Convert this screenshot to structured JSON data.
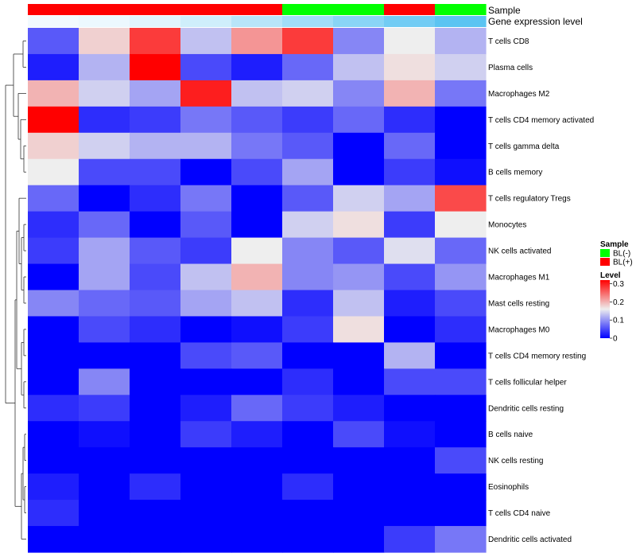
{
  "chart_data": {
    "type": "heatmap",
    "title": "",
    "annotation_labels": {
      "sample": "Sample",
      "gene_level": "Gene expression level"
    },
    "samples": [
      "BL(+)",
      "BL(+)",
      "BL(+)",
      "BL(+)",
      "BL(+)",
      "BL(-)",
      "BL(-)",
      "BL(+)",
      "BL(-)"
    ],
    "gene_expression_level": [
      0.02,
      0.03,
      0.05,
      0.08,
      0.12,
      0.16,
      0.2,
      0.24,
      0.28
    ],
    "rows": [
      "T cells CD8",
      "Plasma cells",
      "Macrophages M2",
      "T cells CD4 memory activated",
      "T cells gamma delta",
      "B cells memory",
      "T cells regulatory  Tregs",
      "Monocytes",
      "NK cells activated",
      "Macrophages M1",
      "Mast cells resting",
      "Macrophages M0",
      "T cells CD4 memory resting",
      "T cells follicular helper",
      "Dendritic cells resting",
      "B cells naive",
      "NK cells resting",
      "Eosinophils",
      "T cells CD4 naive",
      "Dendritic cells activated"
    ],
    "values": [
      [
        0.06,
        0.18,
        0.28,
        0.13,
        0.22,
        0.28,
        0.09,
        0.16,
        0.12
      ],
      [
        0.02,
        0.12,
        0.32,
        0.05,
        0.02,
        0.07,
        0.13,
        0.17,
        0.14
      ],
      [
        0.2,
        0.14,
        0.11,
        0.3,
        0.13,
        0.14,
        0.09,
        0.2,
        0.08
      ],
      [
        0.32,
        0.03,
        0.04,
        0.08,
        0.06,
        0.04,
        0.07,
        0.03,
        0.0
      ],
      [
        0.18,
        0.14,
        0.12,
        0.12,
        0.08,
        0.06,
        0.0,
        0.07,
        0.0
      ],
      [
        0.16,
        0.05,
        0.05,
        0.0,
        0.05,
        0.11,
        0.0,
        0.04,
        0.01
      ],
      [
        0.07,
        0.0,
        0.03,
        0.08,
        0.0,
        0.06,
        0.14,
        0.11,
        0.27
      ],
      [
        0.03,
        0.07,
        0.0,
        0.06,
        0.0,
        0.14,
        0.17,
        0.04,
        0.16
      ],
      [
        0.04,
        0.11,
        0.06,
        0.04,
        0.16,
        0.09,
        0.06,
        0.15,
        0.07
      ],
      [
        0.0,
        0.11,
        0.05,
        0.13,
        0.2,
        0.09,
        0.1,
        0.05,
        0.1
      ],
      [
        0.09,
        0.07,
        0.06,
        0.11,
        0.13,
        0.03,
        0.13,
        0.02,
        0.05
      ],
      [
        0.0,
        0.05,
        0.03,
        0.0,
        0.01,
        0.04,
        0.17,
        0.0,
        0.03
      ],
      [
        0.0,
        0.0,
        0.0,
        0.05,
        0.06,
        0.0,
        0.0,
        0.12,
        0.0
      ],
      [
        0.0,
        0.09,
        0.0,
        0.0,
        0.0,
        0.03,
        0.0,
        0.05,
        0.05
      ],
      [
        0.03,
        0.04,
        0.0,
        0.02,
        0.07,
        0.04,
        0.02,
        0.0,
        0.0
      ],
      [
        0.0,
        0.01,
        0.0,
        0.04,
        0.02,
        0.0,
        0.05,
        0.01,
        0.0
      ],
      [
        0.0,
        0.0,
        0.0,
        0.0,
        0.0,
        0.0,
        0.0,
        0.0,
        0.05
      ],
      [
        0.02,
        0.0,
        0.03,
        0.0,
        0.0,
        0.03,
        0.0,
        0.0,
        0.0
      ],
      [
        0.03,
        0.0,
        0.0,
        0.0,
        0.0,
        0.0,
        0.0,
        0.0,
        0.0
      ],
      [
        0.0,
        0.0,
        0.0,
        0.0,
        0.0,
        0.0,
        0.0,
        0.04,
        0.08
      ]
    ],
    "color_scale": {
      "min": 0,
      "mid": 0.16,
      "max": 0.32,
      "low": "#0000FF",
      "mid_color": "#EEEEEE",
      "high": "#FF0000"
    },
    "legend": {
      "sample_title": "Sample",
      "sample_entries": [
        {
          "label": "BL(-)",
          "color": "#00FF00"
        },
        {
          "label": "BL(+)",
          "color": "#FF0000"
        }
      ],
      "level_title": "Level",
      "level_ticks": [
        {
          "label": "0.3",
          "value": 0.3
        },
        {
          "label": "0.2",
          "value": 0.2
        },
        {
          "label": "0.1",
          "value": 0.1
        },
        {
          "label": "0",
          "value": 0
        }
      ]
    },
    "annotation_colors": {
      "BL(+)": "#FF0000",
      "BL(-)": "#00FF00",
      "level_low": "#F2FAFE",
      "level_high": "#5BC4F2"
    }
  }
}
